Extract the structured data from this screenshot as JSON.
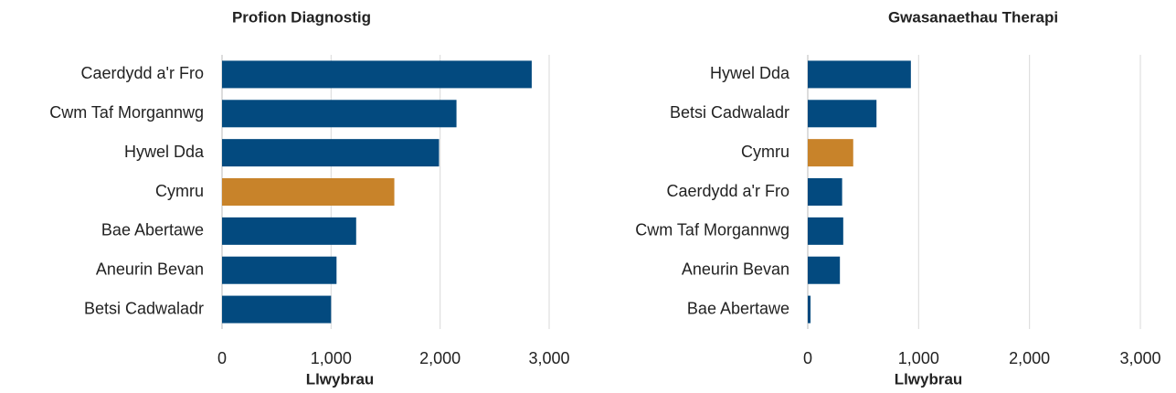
{
  "chart_data": [
    {
      "type": "barh",
      "title": "Profion Diagnostig",
      "x_label": "Llwybrau",
      "categories": [
        "Caerdydd a'r Fro",
        "Cwm Taf Morgannwg",
        "Hywel Dda",
        "Cymru",
        "Bae Abertawe",
        "Aneurin Bevan",
        "Betsi Cadwaladr"
      ],
      "values": [
        2840,
        2150,
        1990,
        1580,
        1230,
        1050,
        1000
      ],
      "colors": [
        "#034a7f",
        "#034a7f",
        "#034a7f",
        "#c8832a",
        "#034a7f",
        "#034a7f",
        "#034a7f"
      ],
      "xlim": [
        0,
        3000
      ],
      "xticks": [
        0,
        {
          "value": 1000,
          "label": "1,000"
        },
        {
          "value": 2000,
          "label": "2,000"
        },
        {
          "value": 3000,
          "label": "3,000"
        }
      ],
      "grid": true
    },
    {
      "type": "barh",
      "title": "Gwasanaethau Therapi",
      "x_label": "Llwybrau",
      "categories": [
        "Hywel Dda",
        "Betsi Cadwaladr",
        "Cymru",
        "Caerdydd a'r Fro",
        "Cwm Taf Morgannwg",
        "Aneurin Bevan",
        "Bae Abertawe"
      ],
      "values": [
        930,
        620,
        410,
        310,
        320,
        290,
        25
      ],
      "colors": [
        "#034a7f",
        "#034a7f",
        "#c8832a",
        "#034a7f",
        "#034a7f",
        "#034a7f",
        "#034a7f"
      ],
      "xlim": [
        0,
        3000
      ],
      "xticks": [
        0,
        {
          "value": 1000,
          "label": "1,000"
        },
        {
          "value": 2000,
          "label": "2,000"
        },
        {
          "value": 3000,
          "label": "3,000"
        }
      ],
      "grid": true
    }
  ]
}
